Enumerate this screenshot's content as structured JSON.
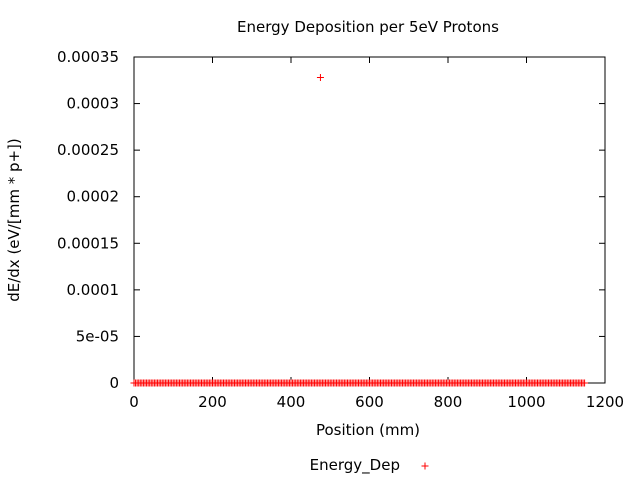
{
  "chart_data": {
    "type": "scatter",
    "title": "Energy Deposition per 5eV Protons",
    "xlabel": "Position (mm)",
    "ylabel": "dE/dx (eV/[mm * p+])",
    "xlim": [
      0,
      1200
    ],
    "ylim": [
      0,
      0.00035
    ],
    "xticks": [
      "0",
      "200",
      "400",
      "600",
      "800",
      "1000",
      "1200"
    ],
    "yticks": [
      "0",
      "5e-05",
      "0.0001",
      "0.00015",
      "0.0002",
      "0.00025",
      "0.0003",
      "0.00035"
    ],
    "grid": false,
    "legend_position": "bottom-center",
    "series": [
      {
        "name": "Energy_Dep",
        "color": "#ff0000",
        "marker": "plus",
        "points": [
          {
            "x": 475,
            "y": 0.000328
          }
        ],
        "zero_run": {
          "x_start": 0,
          "x_end": 1150,
          "step": 4,
          "y": 0
        }
      }
    ]
  }
}
